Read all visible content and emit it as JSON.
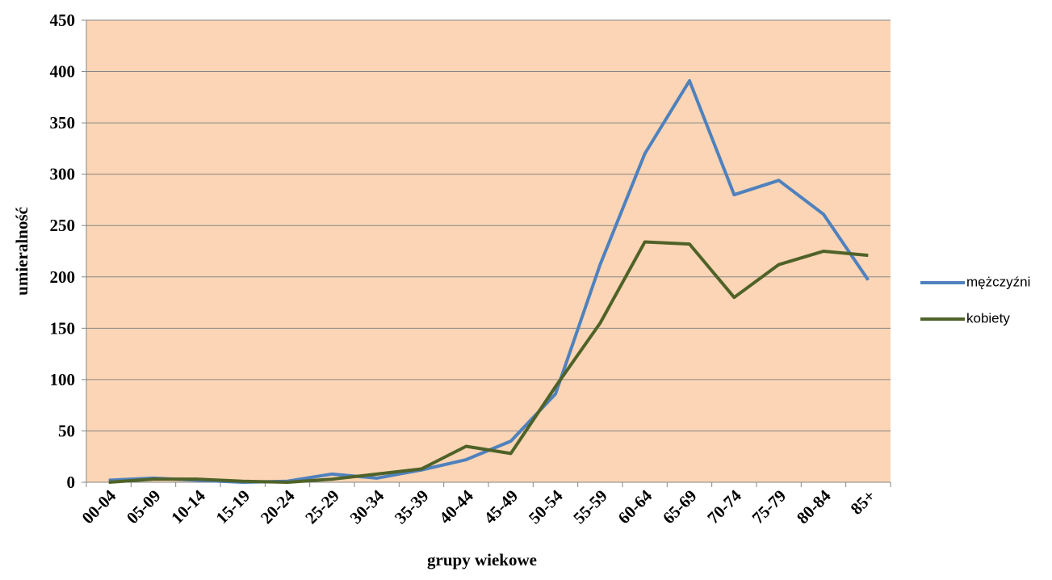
{
  "chart_data": {
    "type": "line",
    "x_label": "grupy wiekowe",
    "y_label": "umieralność",
    "categories": [
      "00-04",
      "05-09",
      "10-14",
      "15-19",
      "20-24",
      "25-29",
      "30-34",
      "35-39",
      "40-44",
      "45-49",
      "50-54",
      "55-59",
      "60-64",
      "65-69",
      "70-74",
      "75-79",
      "80-84",
      "85+"
    ],
    "series": [
      {
        "name": "mężczyźni",
        "color": "#4f81bd",
        "values": [
          2,
          4,
          2,
          0,
          1,
          8,
          4,
          12,
          22,
          40,
          86,
          212,
          320,
          391,
          280,
          294,
          261,
          197
        ]
      },
      {
        "name": "kobiety",
        "color": "#4f6228",
        "values": [
          0,
          3,
          3,
          1,
          0,
          3,
          8,
          13,
          35,
          28,
          93,
          155,
          234,
          232,
          180,
          212,
          225,
          221
        ]
      }
    ],
    "ylim": [
      0,
      450
    ],
    "yticks": [
      0,
      50,
      100,
      150,
      200,
      250,
      300,
      350,
      400,
      450
    ],
    "grid": true,
    "plot_background": "#fbd5b5",
    "legend": "right"
  }
}
